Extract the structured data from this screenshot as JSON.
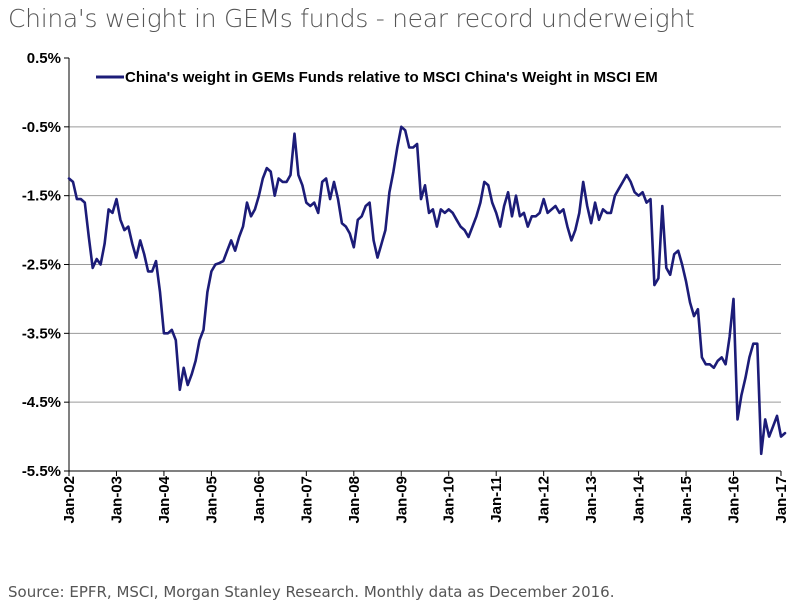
{
  "chart_title": "China's weight in GEMs funds - near record underweight",
  "source_note": "Source: EPFR, MSCI, Morgan Stanley Research. Monthly data as December 2016.",
  "colors": {
    "series": "#1c1c78",
    "grid": "#9a9a9a",
    "axis": "#000000"
  },
  "chart_data": {
    "type": "line",
    "title": "China's weight in GEMs funds - near record underweight",
    "xlabel": "",
    "ylabel": "",
    "ylim": [
      -5.5,
      0.5
    ],
    "y_ticks": [
      "0.5%",
      "-0.5%",
      "-1.5%",
      "-2.5%",
      "-3.5%",
      "-4.5%",
      "-5.5%"
    ],
    "y_tick_values": [
      0.5,
      -0.5,
      -1.5,
      -2.5,
      -3.5,
      -4.5,
      -5.5
    ],
    "x_tick_labels": [
      "Jan-02",
      "Jan-03",
      "Jan-04",
      "Jan-05",
      "Jan-06",
      "Jan-07",
      "Jan-08",
      "Jan-09",
      "Jan-10",
      "Jan-11",
      "Jan-12",
      "Jan-13",
      "Jan-14",
      "Jan-15",
      "Jan-16",
      "Jan-17"
    ],
    "x_start_year": 2002,
    "legend_position": "top",
    "grid": true,
    "series": [
      {
        "name": "China's weight in GEMs Funds relative to MSCI China's Weight in MSCI EM",
        "start": "Jan-02",
        "frequency": "monthly",
        "values": [
          -1.25,
          -1.3,
          -1.55,
          -1.55,
          -1.6,
          -2.1,
          -2.55,
          -2.42,
          -2.5,
          -2.2,
          -1.7,
          -1.75,
          -1.55,
          -1.85,
          -2.0,
          -1.95,
          -2.2,
          -2.4,
          -2.15,
          -2.35,
          -2.6,
          -2.6,
          -2.45,
          -2.9,
          -3.5,
          -3.5,
          -3.45,
          -3.6,
          -4.32,
          -4.0,
          -4.25,
          -4.1,
          -3.9,
          -3.6,
          -3.45,
          -2.9,
          -2.6,
          -2.5,
          -2.48,
          -2.45,
          -2.3,
          -2.15,
          -2.3,
          -2.1,
          -1.95,
          -1.6,
          -1.8,
          -1.7,
          -1.5,
          -1.25,
          -1.1,
          -1.15,
          -1.5,
          -1.25,
          -1.3,
          -1.3,
          -1.2,
          -0.6,
          -1.2,
          -1.35,
          -1.6,
          -1.65,
          -1.6,
          -1.75,
          -1.3,
          -1.25,
          -1.55,
          -1.3,
          -1.55,
          -1.9,
          -1.95,
          -2.05,
          -2.25,
          -1.85,
          -1.8,
          -1.65,
          -1.6,
          -2.15,
          -2.4,
          -2.2,
          -2.0,
          -1.45,
          -1.15,
          -0.8,
          -0.5,
          -0.55,
          -0.8,
          -0.8,
          -0.75,
          -1.55,
          -1.35,
          -1.75,
          -1.7,
          -1.95,
          -1.7,
          -1.75,
          -1.7,
          -1.75,
          -1.85,
          -1.95,
          -2.0,
          -2.1,
          -1.95,
          -1.8,
          -1.6,
          -1.3,
          -1.35,
          -1.6,
          -1.75,
          -1.95,
          -1.65,
          -1.45,
          -1.8,
          -1.5,
          -1.8,
          -1.75,
          -1.95,
          -1.8,
          -1.8,
          -1.75,
          -1.55,
          -1.75,
          -1.7,
          -1.65,
          -1.75,
          -1.7,
          -1.95,
          -2.15,
          -2.0,
          -1.75,
          -1.3,
          -1.65,
          -1.9,
          -1.6,
          -1.85,
          -1.7,
          -1.75,
          -1.75,
          -1.5,
          -1.4,
          -1.3,
          -1.2,
          -1.3,
          -1.45,
          -1.5,
          -1.45,
          -1.6,
          -1.55,
          -2.8,
          -2.7,
          -1.65,
          -2.55,
          -2.65,
          -2.35,
          -2.3,
          -2.5,
          -2.75,
          -3.05,
          -3.25,
          -3.15,
          -3.85,
          -3.95,
          -3.95,
          -4.0,
          -3.9,
          -3.85,
          -3.95,
          -3.55,
          -3.0,
          -4.75,
          -4.4,
          -4.15,
          -3.85,
          -3.65,
          -3.65,
          -5.25,
          -4.75,
          -5.0,
          -4.85,
          -4.7,
          -5.0,
          -4.95
        ]
      }
    ]
  }
}
